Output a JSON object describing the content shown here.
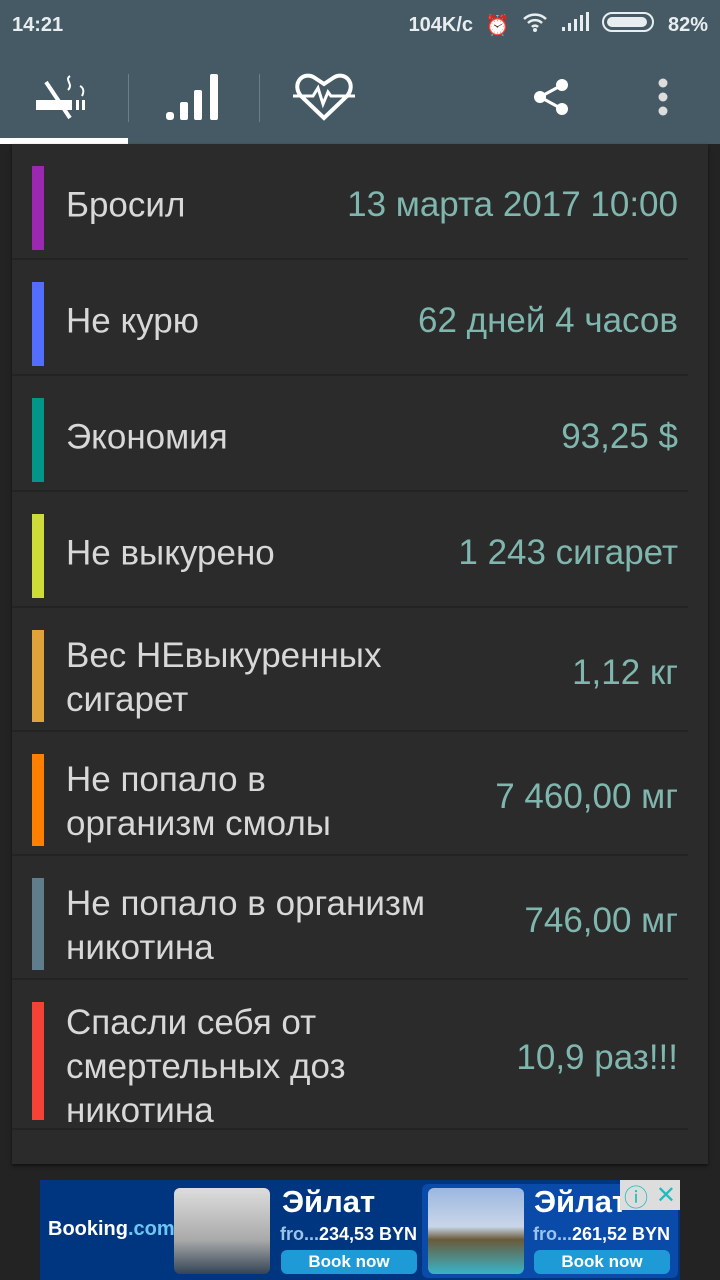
{
  "status": {
    "time": "14:21",
    "speed": "104K/c",
    "battery": "82%"
  },
  "toolbar": {
    "tabs": [
      {
        "icon": "no-smoking-icon"
      },
      {
        "icon": "signal-bars-icon"
      },
      {
        "icon": "heart-pulse-icon"
      }
    ],
    "actions": [
      "share-icon",
      "more-vert-icon"
    ]
  },
  "rows": [
    {
      "label": "Бросил",
      "value": "13 марта 2017 10:00",
      "color": "#9c27b0"
    },
    {
      "label": "Не курю",
      "value": "62 дней 4 часов",
      "color": "#536dfe"
    },
    {
      "label": "Экономия",
      "value": "93,25 $",
      "color": "#009688"
    },
    {
      "label": "Не выкурено",
      "value": "1 243 сигарет",
      "color": "#cddc39"
    },
    {
      "label": "Вес НЕвыкуренных сигарет",
      "value": "1,12 кг",
      "color": "#e0a33a"
    },
    {
      "label": "Не попало в организм смолы",
      "value": "7 460,00 мг",
      "color": "#ff7f00"
    },
    {
      "label": "Не попало в организм никотина",
      "value": "746,00 мг",
      "color": "#607d8b"
    },
    {
      "label": "Спасли себя от смертельных доз никотина",
      "value": "10,9 раз!!!",
      "color": "#f44336"
    }
  ],
  "ad": {
    "brand": "Booking",
    "brand_suffix": ".com",
    "items": [
      {
        "title": "Эйлат",
        "price_prefix": "fro...",
        "price": "234,53 BYN",
        "button": "Book now"
      },
      {
        "title": "Эйлат",
        "price_prefix": "fro...",
        "price": "261,52 BYN",
        "button": "Book now"
      }
    ]
  }
}
